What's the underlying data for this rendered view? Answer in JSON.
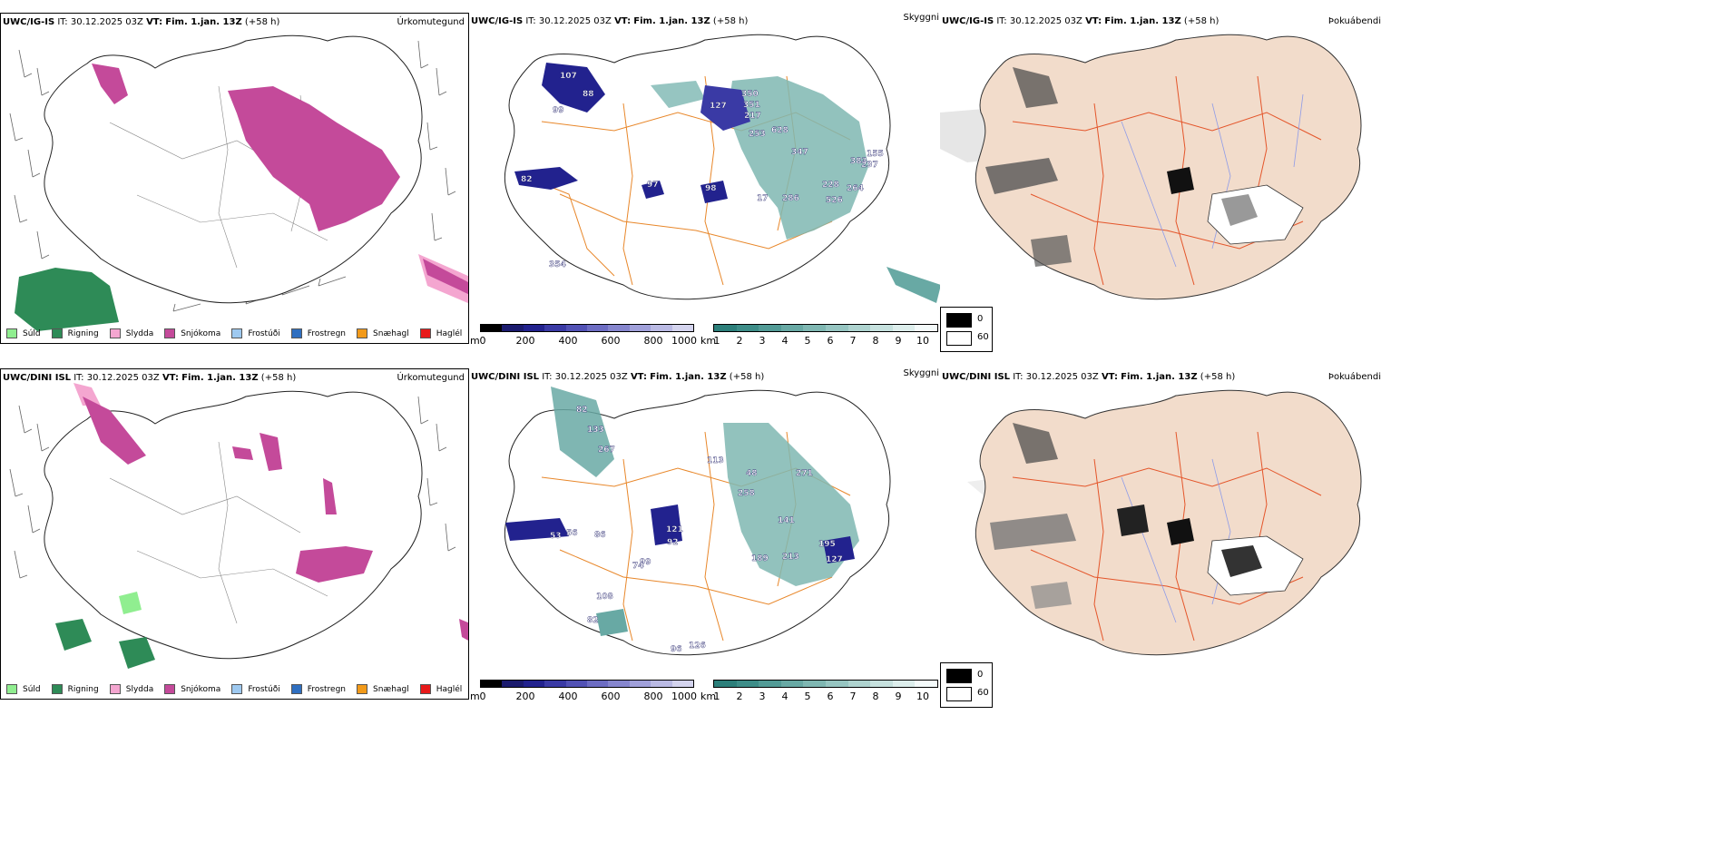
{
  "rows": [
    {
      "model": "UWC/IG-IS",
      "it": "IT: 30.12.2025 03Z",
      "vt_label": "VT:",
      "vt": "Fim. 1.jan. 13Z",
      "lead": "(+58 h)",
      "snow_labels": [
        "350",
        "351",
        "217",
        "127",
        "107",
        "88",
        "99",
        "628",
        "253",
        "347",
        "228",
        "526",
        "264",
        "383",
        "237",
        "155",
        "97",
        "98",
        "82",
        "17",
        "286",
        "354"
      ]
    },
    {
      "model": "UWC/DINI ISL",
      "it": "IT: 30.12.2025 03Z",
      "vt_label": "VT:",
      "vt": "Fim. 1.jan. 13Z",
      "lead": "(+58 h)",
      "snow_labels": [
        "82",
        "133",
        "267",
        "113",
        "48",
        "258",
        "271",
        "141",
        "121",
        "92",
        "86",
        "56",
        "53",
        "99",
        "189",
        "213",
        "195",
        "127",
        "108",
        "82",
        "96",
        "126",
        "74"
      ]
    }
  ],
  "panel_labels": {
    "precip": "Úrkomutegund",
    "cloud": "Skyggni",
    "fog": "Þokuábendi"
  },
  "precip_legend": [
    {
      "label": "Súld",
      "color": "#90ee90"
    },
    {
      "label": "Rigning",
      "color": "#2e8b57"
    },
    {
      "label": "Slydda",
      "color": "#f4a6d0"
    },
    {
      "label": "Snjókoma",
      "color": "#c44a9a"
    },
    {
      "label": "Frostúði",
      "color": "#9ec9f0"
    },
    {
      "label": "Frostregn",
      "color": "#2f6fc0"
    },
    {
      "label": "Snæhagl",
      "color": "#f29a1a"
    },
    {
      "label": "Haglél",
      "color": "#e81a1a"
    }
  ],
  "cbar_m": {
    "unit": "m",
    "ticks": [
      "0",
      "200",
      "400",
      "600",
      "800",
      "1000"
    ],
    "colors": [
      "#000000",
      "#1b1b6e",
      "#22228e",
      "#3a3aa5",
      "#5252b5",
      "#6d6dc3",
      "#8686ce",
      "#a0a0da",
      "#babae4",
      "#d4d4ee"
    ]
  },
  "cbar_km": {
    "unit": "km",
    "ticks": [
      "1",
      "2",
      "3",
      "4",
      "5",
      "6",
      "7",
      "8",
      "9",
      "10"
    ],
    "colors": [
      "#2c7f7a",
      "#3d8d88",
      "#529b96",
      "#68a9a4",
      "#7fb7b2",
      "#96c5c1",
      "#aed3cf",
      "#c6e1de",
      "#ddeeec",
      "#f4fafa"
    ]
  },
  "cloud_legend": {
    "dark_value": "0",
    "light_value": "60"
  }
}
